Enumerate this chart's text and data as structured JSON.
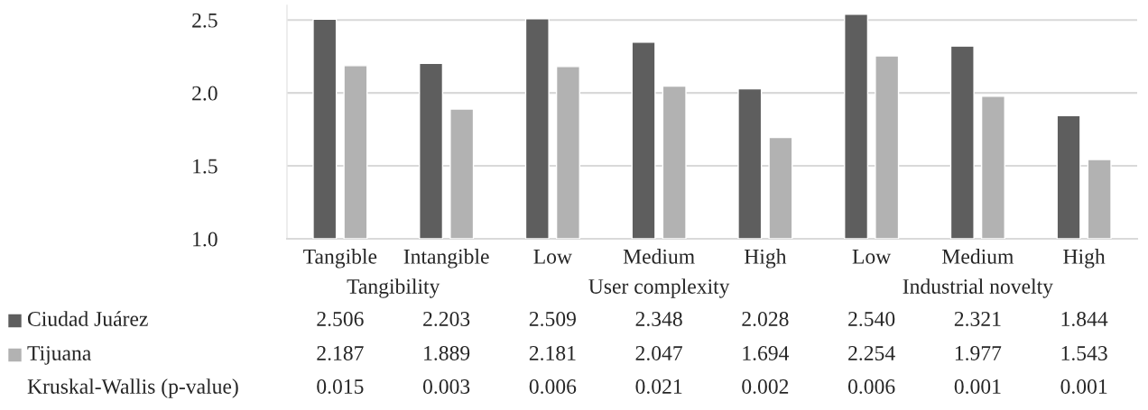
{
  "chart_data": {
    "type": "bar",
    "categories": [
      "Tangible",
      "Intangible",
      "Low",
      "Medium",
      "High",
      "Low",
      "Medium",
      "High"
    ],
    "series": [
      {
        "name": "Ciudad Juárez",
        "color": "#5e5e5e",
        "values": [
          2.506,
          2.203,
          2.509,
          2.348,
          2.028,
          2.54,
          2.321,
          1.844
        ],
        "value_labels": [
          "2.506",
          "2.203",
          "2.509",
          "2.348",
          "2.028",
          "2.540",
          "2.321",
          "1.844"
        ]
      },
      {
        "name": "Tijuana",
        "color": "#b2b2b2",
        "values": [
          2.187,
          1.889,
          2.181,
          2.047,
          1.694,
          2.254,
          1.977,
          1.543
        ],
        "value_labels": [
          "2.187",
          "1.889",
          "2.181",
          "2.047",
          "1.694",
          "2.254",
          "1.977",
          "1.543"
        ]
      }
    ],
    "annotations": [
      "Tangibility",
      "User complexity",
      "Industrial novelty",
      "Kruskal-Wallis (p-value)",
      "0.015",
      "0.003",
      "0.006",
      "0.021",
      "0.002",
      "0.006",
      "0.001",
      "0.001"
    ],
    "ylim": [
      1.0,
      2.6
    ],
    "yticks": [
      {
        "value": 1.0,
        "label": "1.0"
      },
      {
        "value": 1.5,
        "label": "1.5"
      },
      {
        "value": 2.0,
        "label": "2.0"
      },
      {
        "value": 2.5,
        "label": "2.5"
      }
    ],
    "grid": "y",
    "legend": "bottom left"
  }
}
